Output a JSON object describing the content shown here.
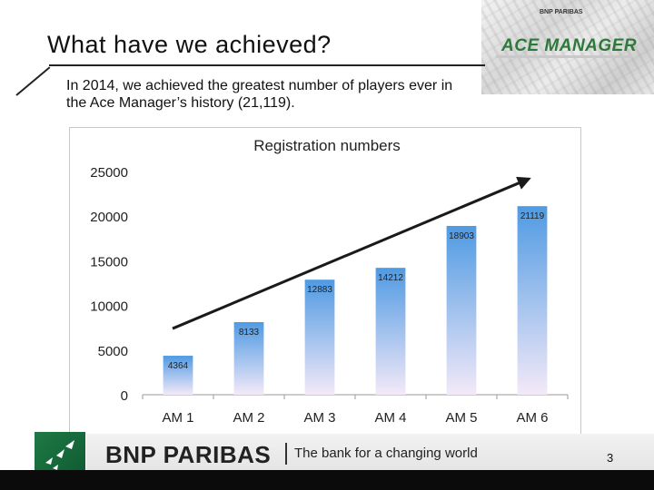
{
  "slide": {
    "title": "What have we achieved?",
    "body": "In 2014, we achieved the greatest number of players ever in the Ace Manager’s history (21,119).",
    "header_logo_small": "BNP PARIBAS",
    "header_logo_main": "ACE MANAGER",
    "footer_brand": "BNP PARIBAS",
    "footer_tagline": "The bank for a changing world",
    "page_number": "3"
  },
  "colors": {
    "bar_top": "#4f9ae3",
    "bar_bottom": "#f3e9f8",
    "arrow": "#1a1a1a",
    "footer_green": "#1e7a45"
  },
  "chart_data": {
    "type": "bar",
    "title": "Registration numbers",
    "categories": [
      "AM 1",
      "AM 2",
      "AM 3",
      "AM 4",
      "AM 5",
      "AM 6"
    ],
    "values": [
      4364,
      8133,
      12883,
      14212,
      18903,
      21119
    ],
    "data_labels": [
      "4364",
      "8133",
      "12883",
      "14212",
      "18903",
      "21119"
    ],
    "yticks": [
      "0",
      "5000",
      "10000",
      "15000",
      "20000",
      "25000"
    ],
    "ylim": [
      0,
      25000
    ],
    "grid": false,
    "legend": "none",
    "trend_arrow": true
  }
}
